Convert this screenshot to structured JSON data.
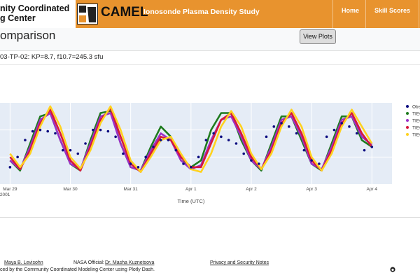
{
  "header": {
    "org_line1": "nity Coordinated",
    "org_line2": "g Center",
    "app": "CAMEL",
    "study": "Ionosonde Plasma Density Study",
    "nav": [
      "Home",
      "Skill Scores"
    ]
  },
  "page": {
    "title": "omparison",
    "button": "View Plots",
    "subtitle": "03-TP-02: KP=8.7, f10.7=245.3 sfu"
  },
  "chart_data": {
    "type": "line",
    "xlabel": "Time (UTC)",
    "xlim": [
      -4,
      152
    ],
    "xticks": [
      {
        "value": 0,
        "label": "Mar 29\n2001"
      },
      {
        "value": 24,
        "label": "Mar 30"
      },
      {
        "value": 48,
        "label": "Mar 31"
      },
      {
        "value": 72,
        "label": "Apr 1"
      },
      {
        "value": 96,
        "label": "Apr 2"
      },
      {
        "value": 120,
        "label": "Apr 3"
      },
      {
        "value": 144,
        "label": "Apr 4"
      }
    ],
    "ylim": [
      0,
      12
    ],
    "yticks": [
      4,
      8
    ],
    "grid": true,
    "series": [
      {
        "name": "Obs",
        "mode": "markers",
        "color": "#0d0d80",
        "x": [
          0,
          3,
          6,
          9,
          12,
          15,
          18,
          21,
          24,
          27,
          30,
          33,
          36,
          39,
          42,
          45,
          48,
          51,
          54,
          57,
          60,
          63,
          66,
          69,
          72,
          75,
          78,
          81,
          84,
          87,
          90,
          93,
          96,
          99,
          102,
          105,
          108,
          111,
          114,
          117,
          120,
          123,
          126,
          129,
          132,
          135,
          138,
          141,
          144
        ],
        "values": [
          2.5,
          4,
          6.5,
          7.8,
          8,
          7.8,
          7.5,
          5,
          5,
          4.5,
          6,
          8,
          8,
          7.8,
          7,
          4.5,
          3,
          2.5,
          4,
          5.5,
          6.5,
          6.5,
          5,
          3,
          2.5,
          4,
          6.5,
          7.5,
          7,
          6.5,
          6,
          4.5,
          3.5,
          3,
          7,
          8.5,
          9,
          8.5,
          7.5,
          5,
          3.5,
          3,
          7,
          8,
          9,
          8.5,
          7.5,
          5,
          5.5
        ]
      },
      {
        "name": "TIEG",
        "mode": "lines",
        "color": "#1e7b1e",
        "x": [
          0,
          4,
          8,
          12,
          16,
          20,
          24,
          28,
          32,
          36,
          40,
          44,
          48,
          52,
          56,
          60,
          64,
          68,
          72,
          76,
          80,
          84,
          88,
          92,
          96,
          100,
          104,
          108,
          112,
          116,
          120,
          124,
          128,
          132,
          136,
          140,
          144
        ],
        "values": [
          3.5,
          2,
          6,
          10,
          10.5,
          6.5,
          3,
          2,
          6.5,
          10.5,
          10.8,
          6,
          2.5,
          2,
          5.5,
          8.5,
          7,
          3.5,
          2.5,
          3.5,
          8,
          10.5,
          10.5,
          6.5,
          3.5,
          2,
          6,
          10,
          10,
          6.5,
          3,
          2,
          6,
          10,
          10,
          6.5,
          5.5
        ]
      },
      {
        "name": "TIEG",
        "mode": "lines",
        "color": "#9b30c8",
        "x": [
          0,
          4,
          8,
          12,
          16,
          20,
          24,
          28,
          32,
          36,
          40,
          44,
          48,
          52,
          56,
          60,
          64,
          68,
          72,
          76,
          80,
          84,
          88,
          92,
          96,
          100,
          104,
          108,
          112,
          116,
          120,
          124,
          128,
          132,
          136,
          140,
          144
        ],
        "values": [
          3.5,
          2.2,
          5.5,
          9.5,
          10.5,
          6.5,
          3,
          2.2,
          6,
          10,
          10.5,
          6,
          2.5,
          2,
          5,
          7.5,
          6.5,
          3.5,
          2.2,
          2.8,
          6.5,
          9.5,
          10,
          7,
          3.5,
          2.2,
          5.5,
          9.5,
          10,
          7,
          3,
          2.2,
          5.5,
          9.5,
          10,
          7,
          5.8
        ]
      },
      {
        "name": "TIEG",
        "mode": "lines",
        "color": "#d6173c",
        "x": [
          0,
          4,
          8,
          12,
          16,
          20,
          24,
          28,
          32,
          36,
          40,
          44,
          48,
          52,
          56,
          60,
          64,
          68,
          72,
          76,
          80,
          84,
          88,
          92,
          96,
          100,
          104,
          108,
          112,
          116,
          120,
          124,
          128,
          132,
          136,
          140,
          144
        ],
        "values": [
          4,
          2.2,
          5,
          9,
          11,
          7.5,
          3.5,
          2,
          5.5,
          9.5,
          11.2,
          7,
          3,
          1.8,
          4.5,
          7,
          6.5,
          4,
          2.5,
          2.5,
          6,
          9.5,
          10.5,
          7.5,
          4,
          2.2,
          5,
          9,
          10.5,
          7.5,
          3.5,
          2,
          5,
          9,
          10.5,
          7.5,
          5.5
        ]
      },
      {
        "name": "TIEG",
        "mode": "lines",
        "color": "#ffd21f",
        "x": [
          0,
          4,
          8,
          12,
          16,
          20,
          24,
          28,
          32,
          36,
          40,
          44,
          48,
          52,
          56,
          60,
          64,
          68,
          72,
          76,
          80,
          84,
          88,
          92,
          96,
          100,
          104,
          108,
          112,
          116,
          120,
          124,
          128,
          132,
          136,
          140,
          144
        ],
        "values": [
          4.5,
          2.5,
          4.5,
          8.5,
          11.5,
          8.5,
          4,
          2.3,
          5,
          9,
          11.5,
          8,
          3.5,
          1.8,
          4,
          6.5,
          7,
          4.5,
          2.2,
          1.8,
          4.5,
          8.5,
          10.8,
          8.5,
          4.5,
          2.2,
          4.5,
          8.5,
          11,
          8.5,
          4,
          2,
          4.5,
          8.5,
          11,
          8.5,
          6
        ]
      }
    ]
  },
  "footer": {
    "developer": "Maya B. Levisohn",
    "nasa_label": "NASA Official:",
    "nasa_name": "Dr. Masha Kuznetsova",
    "privacy": "Privacy and Security Notes",
    "credit": "ced by the Community Coordinated Modeling Center using Plotly Dash."
  }
}
